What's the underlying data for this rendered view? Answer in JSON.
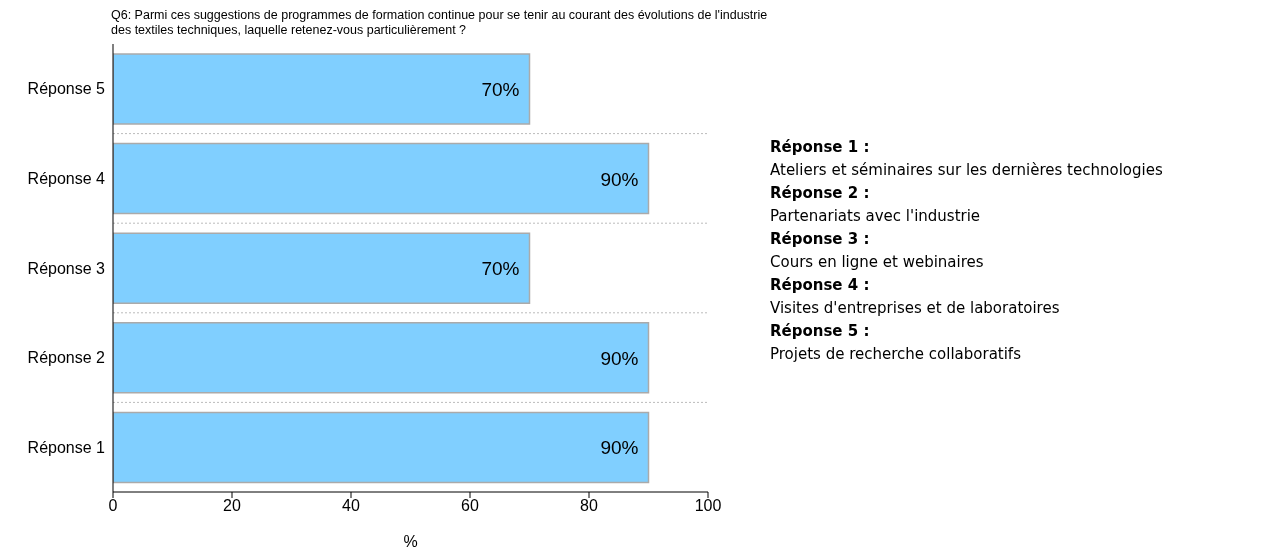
{
  "chart_data": {
    "type": "bar",
    "orientation": "horizontal",
    "title": "Q6: Parmi ces suggestions de programmes de formation continue pour se tenir au courant des évolutions de l'industrie des textiles techniques, laquelle retenez-vous particulièrement ?",
    "categories": [
      "Réponse 5",
      "Réponse 4",
      "Réponse 3",
      "Réponse 2",
      "Réponse 1"
    ],
    "values": [
      70,
      90,
      70,
      90,
      90
    ],
    "value_labels": [
      "70%",
      "90%",
      "70%",
      "90%",
      "90%"
    ],
    "color": "#80cfff",
    "xlabel": "%",
    "xlim": [
      0,
      100
    ],
    "xticks": [
      0,
      20,
      40,
      60,
      80,
      100
    ],
    "grid": "y",
    "legend": false,
    "annotations": [
      "Réponse 1 :",
      "Ateliers et séminaires sur les dernières technologies",
      "Réponse 2 :",
      "Partenariats avec l'industrie",
      "Réponse 3 :",
      "Cours en ligne et webinaires",
      "Réponse 4 :",
      "Visites d'entreprises et de laboratoires",
      "Réponse 5 :",
      "Projets de recherche collaboratifs"
    ]
  }
}
